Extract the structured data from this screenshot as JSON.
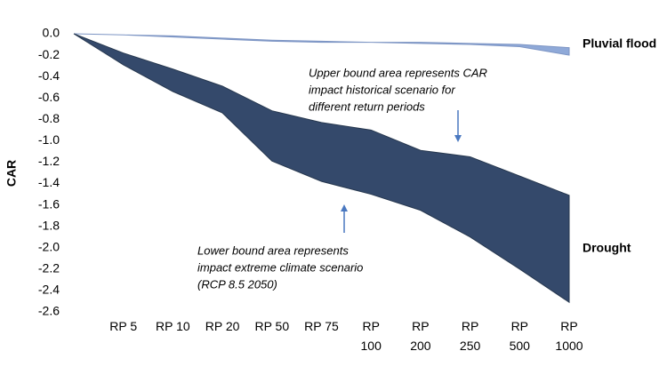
{
  "chart_data": {
    "type": "band",
    "y_label": "CAR",
    "categories": [
      null,
      "RP 5",
      "RP 10",
      "RP 20",
      "RP 50",
      "RP 75",
      "RP 100",
      "RP 200",
      "RP 250",
      "RP 500",
      "RP 1000"
    ],
    "series": [
      {
        "name": "Pluvial flood",
        "color": "#8fa9d8",
        "edge": "#7d95c4",
        "upper": [
          0,
          -0.01,
          -0.02,
          -0.04,
          -0.06,
          -0.07,
          -0.08,
          -0.08,
          -0.09,
          -0.1,
          -0.13
        ],
        "lower": [
          0,
          -0.01,
          -0.03,
          -0.05,
          -0.07,
          -0.08,
          -0.08,
          -0.09,
          -0.1,
          -0.12,
          -0.2
        ]
      },
      {
        "name": "Drought",
        "color": "#34496b",
        "edge": "#27384f",
        "upper": [
          0,
          -0.18,
          -0.33,
          -0.49,
          -0.72,
          -0.83,
          -0.9,
          -1.09,
          -1.15,
          -1.33,
          -1.51
        ],
        "lower": [
          0,
          -0.29,
          -0.54,
          -0.74,
          -1.19,
          -1.38,
          -1.5,
          -1.65,
          -1.9,
          -2.2,
          -2.51
        ]
      }
    ],
    "ylim": [
      0,
      -2.6
    ],
    "yticks": [
      {
        "value": 0,
        "label": "0.0"
      },
      -0.2,
      -0.4,
      -0.6,
      -0.8,
      {
        "value": -1,
        "label": "-1.0"
      },
      -1.2,
      -1.4,
      -1.6,
      -1.8,
      {
        "value": -2,
        "label": "-2.0"
      },
      -2.2,
      -2.4,
      -2.6
    ],
    "annotations": [
      {
        "lines": [
          "Upper bound area represents CAR",
          "impact historical scenario for",
          "different return periods"
        ]
      },
      {
        "lines": [
          "Lower bound area represents",
          "impact extreme climate scenario",
          "(RCP 8.5 2050)"
        ]
      }
    ]
  }
}
